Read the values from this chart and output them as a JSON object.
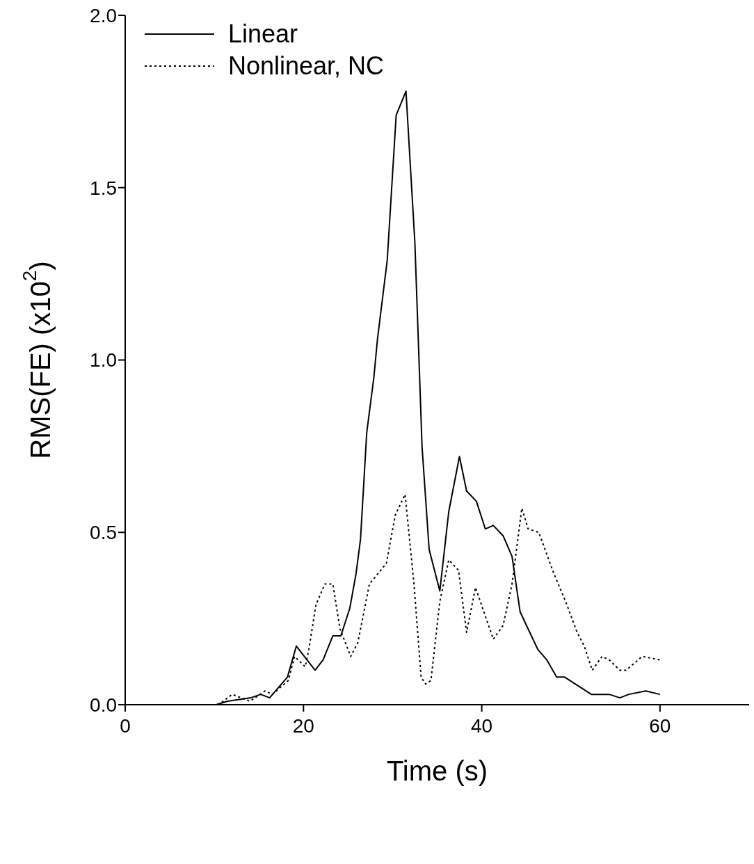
{
  "chart_data": {
    "type": "line",
    "xlabel": "Time (s)",
    "ylabel": "RMS(FE) (x10$^{2}$)",
    "xlim": [
      0,
      70
    ],
    "xticks": [
      0,
      20,
      40,
      60
    ],
    "ylim": [
      0,
      2
    ],
    "yticks": [
      {
        "value": 0,
        "label": "0.0"
      },
      {
        "value": 0.5,
        "label": "0.5"
      },
      {
        "value": 1,
        "label": "1.0"
      },
      {
        "value": 1.5,
        "label": "1.5"
      },
      {
        "value": 2,
        "label": "2.0"
      }
    ],
    "grid": false,
    "legend": "top left",
    "marker": "none",
    "series": [
      {
        "name": "Linear",
        "color": "#000000",
        "line_style": "solid",
        "x": [
          0,
          10.2,
          11.5,
          14.1,
          15.2,
          16.2,
          18.2,
          19.2,
          21.3,
          22.2,
          23.3,
          24.2,
          25.2,
          25.9,
          26.4,
          27.1,
          27.9,
          28.3,
          29.4,
          30.4,
          31.5,
          32.5,
          33.1,
          33.3,
          34.1,
          35.3,
          36.3,
          37.5,
          38.3,
          39.4,
          40.4,
          41.3,
          42.4,
          43.4,
          44.3,
          45.2,
          46.3,
          47.3,
          48.4,
          49.3,
          52.3,
          53.3,
          54.3,
          55.5,
          56.5,
          58.4,
          60
        ],
        "values": [
          0,
          0,
          0.01,
          0.02,
          0.03,
          0.02,
          0.08,
          0.17,
          0.1,
          0.13,
          0.2,
          0.2,
          0.28,
          0.38,
          0.48,
          0.79,
          0.95,
          1.06,
          1.29,
          1.71,
          1.78,
          1.34,
          0.9,
          0.75,
          0.45,
          0.33,
          0.56,
          0.72,
          0.62,
          0.59,
          0.51,
          0.52,
          0.49,
          0.43,
          0.27,
          0.22,
          0.16,
          0.13,
          0.08,
          0.08,
          0.03,
          0.03,
          0.03,
          0.02,
          0.03,
          0.04,
          0.03
        ]
      },
      {
        "name": "Nonlinear, NC",
        "color": "#000000",
        "line_style": "dotted",
        "x": [
          0,
          10.5,
          12,
          14,
          15.7,
          16.5,
          18.3,
          19,
          20.2,
          20.6,
          21.4,
          22.4,
          23.3,
          24.1,
          25.3,
          26.1,
          27.4,
          29.3,
          30.3,
          31.4,
          32.4,
          33.2,
          33.7,
          34.3,
          35.3,
          36.3,
          37.4,
          38.3,
          39.3,
          41.3,
          42.4,
          43.4,
          44.5,
          45.2,
          46.4,
          48.1,
          49.4,
          50.7,
          51.5,
          52.4,
          53.5,
          54.3,
          55.5,
          56.2,
          58,
          60
        ],
        "values": [
          0,
          0,
          0.03,
          0.01,
          0.04,
          0.03,
          0.07,
          0.14,
          0.11,
          0.16,
          0.29,
          0.35,
          0.35,
          0.22,
          0.14,
          0.18,
          0.35,
          0.41,
          0.55,
          0.61,
          0.35,
          0.08,
          0.06,
          0.07,
          0.3,
          0.42,
          0.39,
          0.21,
          0.34,
          0.19,
          0.23,
          0.35,
          0.57,
          0.51,
          0.5,
          0.38,
          0.3,
          0.21,
          0.17,
          0.1,
          0.14,
          0.13,
          0.1,
          0.1,
          0.14,
          0.13
        ]
      }
    ]
  }
}
